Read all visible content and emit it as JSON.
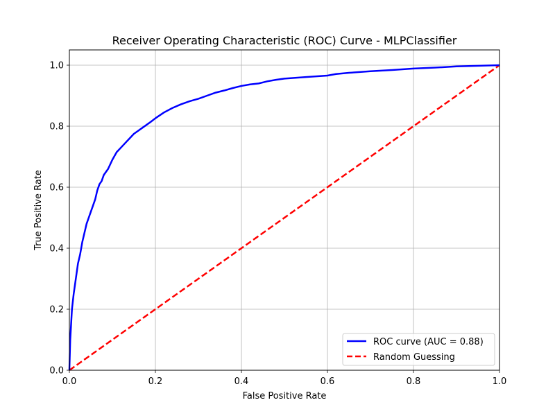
{
  "chart_data": {
    "type": "line",
    "title": "Receiver Operating Characteristic (ROC) Curve - MLPClassifier",
    "xlabel": "False Positive Rate",
    "ylabel": "True Positive Rate",
    "xlim": [
      0.0,
      1.0
    ],
    "ylim": [
      0.0,
      1.05
    ],
    "xticks": [
      "0.0",
      "0.2",
      "0.4",
      "0.6",
      "0.8",
      "1.0"
    ],
    "yticks": [
      "0.0",
      "0.2",
      "0.4",
      "0.6",
      "0.8",
      "1.0"
    ],
    "grid": true,
    "legend_position": "lower-right",
    "series": [
      {
        "name": "ROC curve (AUC = 0.88)",
        "color": "#0000ff",
        "style": "solid",
        "x": [
          0.0,
          0.001,
          0.002,
          0.004,
          0.006,
          0.008,
          0.01,
          0.013,
          0.016,
          0.02,
          0.025,
          0.03,
          0.035,
          0.04,
          0.045,
          0.05,
          0.055,
          0.06,
          0.065,
          0.07,
          0.075,
          0.08,
          0.09,
          0.1,
          0.11,
          0.12,
          0.13,
          0.14,
          0.15,
          0.16,
          0.17,
          0.18,
          0.19,
          0.2,
          0.22,
          0.24,
          0.26,
          0.28,
          0.3,
          0.32,
          0.34,
          0.36,
          0.38,
          0.4,
          0.42,
          0.44,
          0.46,
          0.48,
          0.5,
          0.55,
          0.6,
          0.62,
          0.65,
          0.7,
          0.75,
          0.8,
          0.85,
          0.9,
          0.95,
          1.0
        ],
        "y": [
          0.0,
          0.05,
          0.1,
          0.15,
          0.2,
          0.225,
          0.25,
          0.28,
          0.31,
          0.35,
          0.38,
          0.42,
          0.45,
          0.48,
          0.5,
          0.52,
          0.54,
          0.56,
          0.59,
          0.61,
          0.62,
          0.64,
          0.66,
          0.69,
          0.715,
          0.73,
          0.745,
          0.76,
          0.775,
          0.785,
          0.795,
          0.805,
          0.815,
          0.826,
          0.845,
          0.86,
          0.872,
          0.882,
          0.89,
          0.9,
          0.91,
          0.917,
          0.925,
          0.932,
          0.937,
          0.94,
          0.947,
          0.952,
          0.956,
          0.961,
          0.966,
          0.971,
          0.975,
          0.98,
          0.984,
          0.989,
          0.992,
          0.996,
          0.998,
          1.0
        ]
      },
      {
        "name": "Random Guessing",
        "color": "#ff0000",
        "style": "dashed",
        "x": [
          0.0,
          1.0
        ],
        "y": [
          0.0,
          1.0
        ]
      }
    ]
  }
}
